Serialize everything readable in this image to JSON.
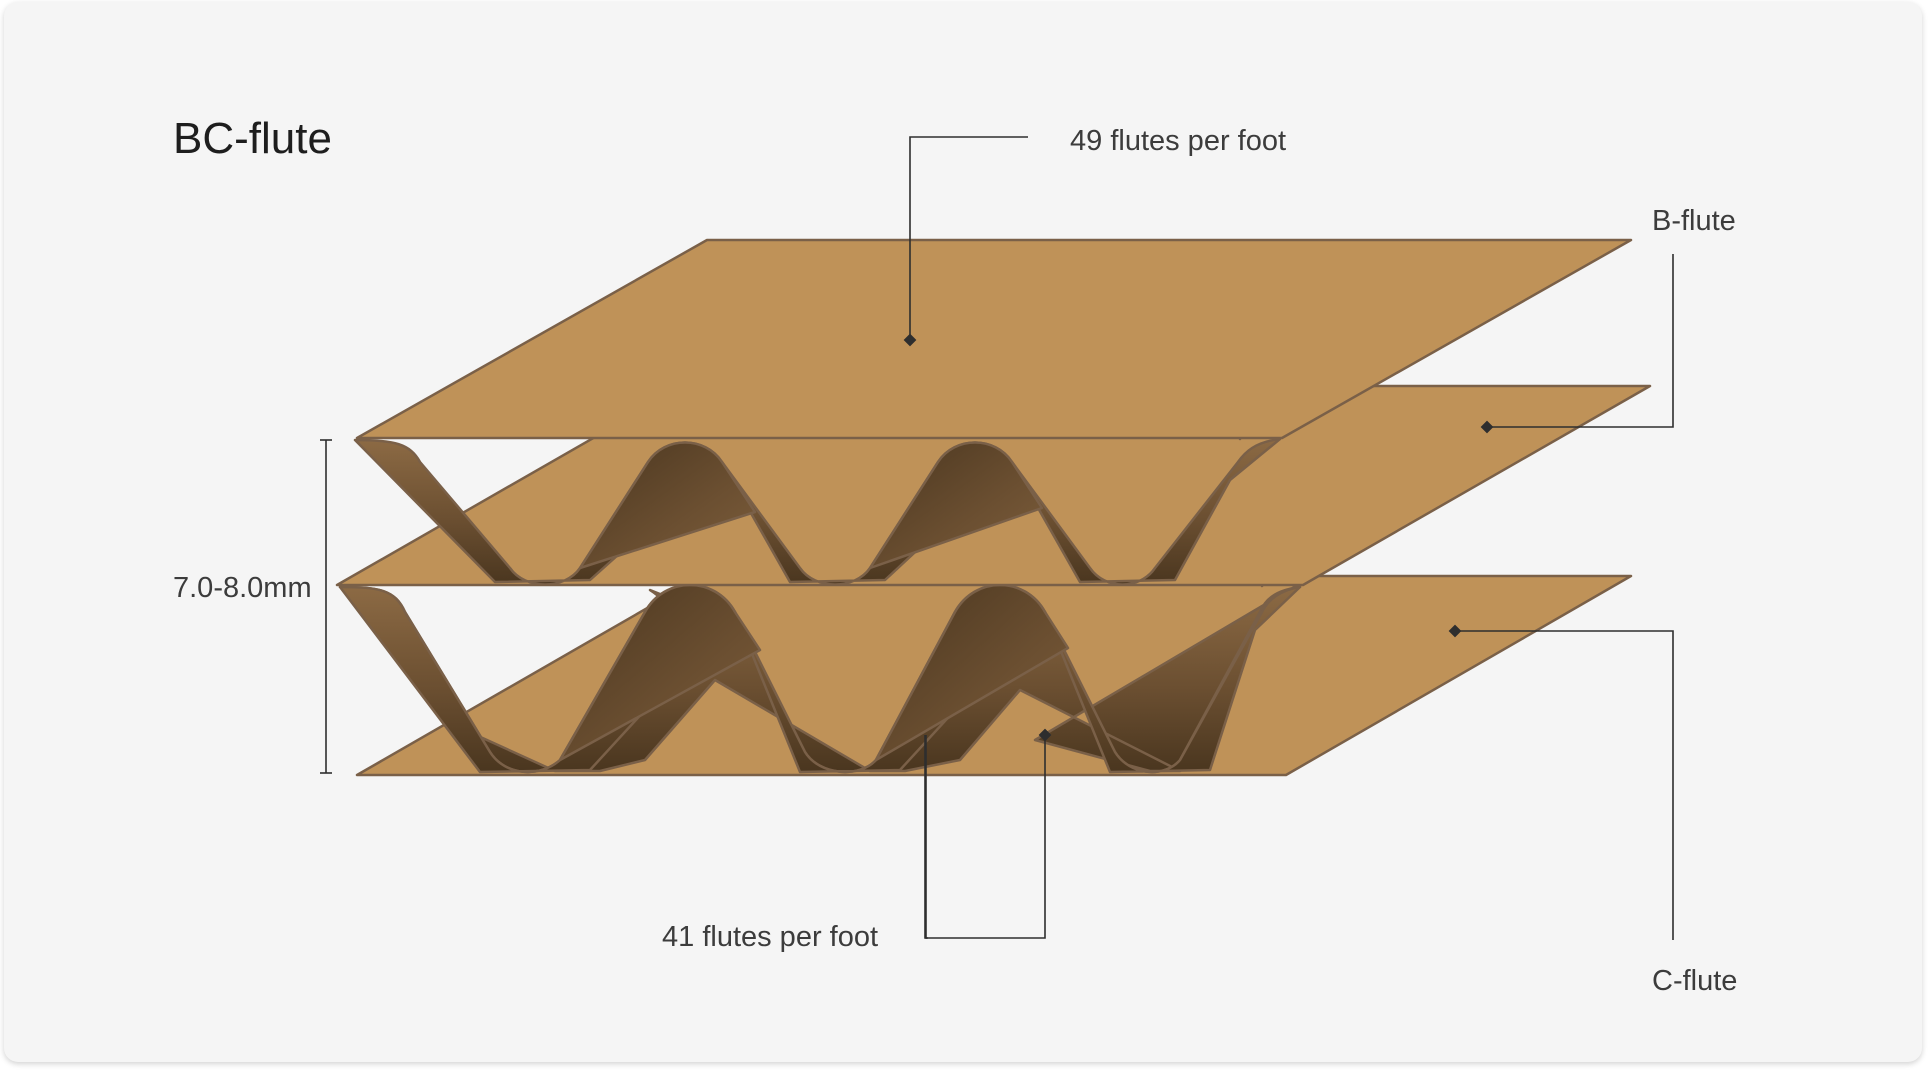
{
  "diagram": {
    "title": "BC-flute",
    "labels": {
      "top_flute_count": "49 flutes per foot",
      "bottom_flute_count": "41 flutes per foot",
      "upper_layer": "B-flute",
      "lower_layer": "C-flute",
      "thickness": "7.0-8.0mm"
    }
  },
  "colors": {
    "card_background": "#f5f5f5",
    "liner_board": "#bf9258",
    "fluting_light": "#8c6a44",
    "fluting_dark": "#4a361f",
    "edge_stroke": "#7a6048",
    "leader_line": "#2e2e2e"
  }
}
